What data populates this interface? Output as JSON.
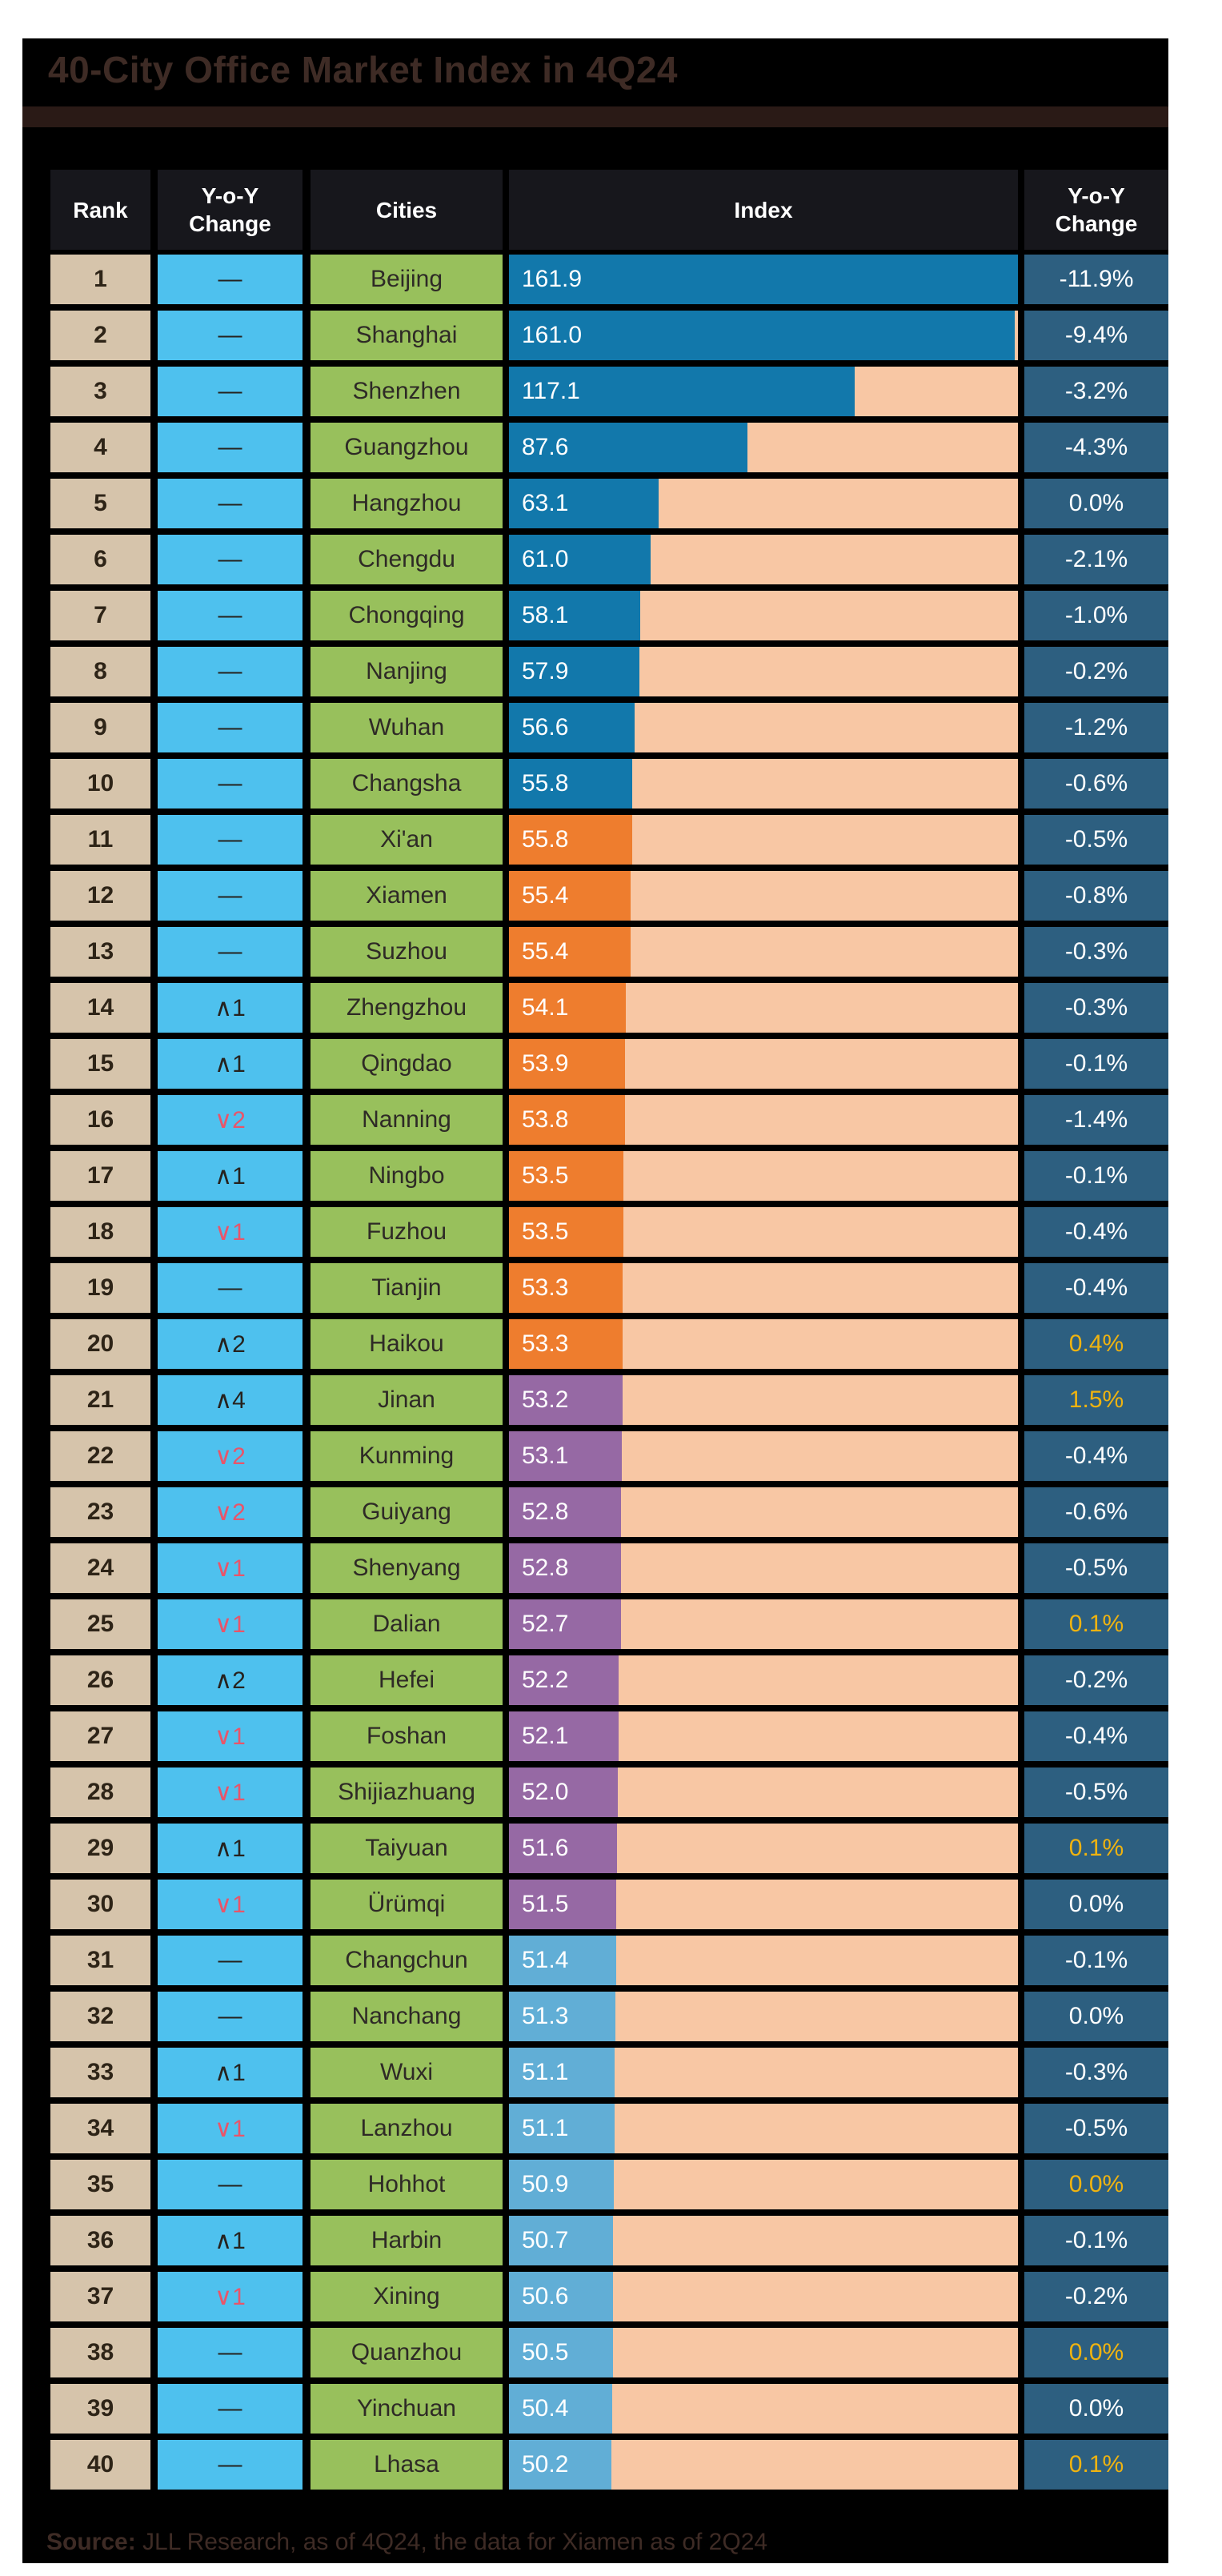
{
  "title": "40-City Office Market Index in 4Q24",
  "header": {
    "rank": "Rank",
    "change": "Y-o-Y Change",
    "cities": "Cities",
    "index": "Index",
    "yoy": "Y-o-Y Change"
  },
  "source": {
    "label": "Source:",
    "text": "JLL Research, as of 4Q24, the data for Xiamen as of 2Q24"
  },
  "colors": {
    "page_background": "#ffffff",
    "card_background": "#000000",
    "title_text": "#3e2b25",
    "divider_bar": "#2a1a16",
    "header_cell": "#17171c",
    "rank_cell": "#d6c4ab",
    "move_cell": "#4ec1ee",
    "city_cell": "#98c05c",
    "bar_track": "#f8c7a4",
    "yoy_cell": "#2d5f80",
    "yoy_accent_text": "#efb310",
    "move_down_text": "#e8556a",
    "tiers": [
      "#1278ab",
      "#ee7d2e",
      "#9669a4",
      "#61aed6"
    ]
  },
  "chart_data": {
    "type": "bar",
    "orientation": "horizontal",
    "title": "40-City Office Market Index in 4Q24",
    "xlabel": "Index",
    "ylabel": "Cities",
    "bar_scale": {
      "min": 22,
      "max": 161.9
    },
    "legend": "none",
    "grid": false,
    "categories": [
      "Beijing",
      "Shanghai",
      "Shenzhen",
      "Guangzhou",
      "Hangzhou",
      "Chengdu",
      "Chongqing",
      "Nanjing",
      "Wuhan",
      "Changsha",
      "Xi'an",
      "Xiamen",
      "Suzhou",
      "Zhengzhou",
      "Qingdao",
      "Nanning",
      "Ningbo",
      "Fuzhou",
      "Tianjin",
      "Haikou",
      "Jinan",
      "Kunming",
      "Guiyang",
      "Shenyang",
      "Dalian",
      "Hefei",
      "Foshan",
      "Shijiazhuang",
      "Taiyuan",
      "Ürümqi",
      "Changchun",
      "Nanchang",
      "Wuxi",
      "Lanzhou",
      "Hohhot",
      "Harbin",
      "Xining",
      "Quanzhou",
      "Yinchuan",
      "Lhasa"
    ],
    "values": [
      161.9,
      161.0,
      117.1,
      87.6,
      63.1,
      61.0,
      58.1,
      57.9,
      56.6,
      55.8,
      55.8,
      55.4,
      55.4,
      54.1,
      53.9,
      53.8,
      53.5,
      53.5,
      53.3,
      53.3,
      53.2,
      53.1,
      52.8,
      52.8,
      52.7,
      52.2,
      52.1,
      52.0,
      51.6,
      51.5,
      51.4,
      51.3,
      51.1,
      51.1,
      50.9,
      50.7,
      50.6,
      50.5,
      50.4,
      50.2
    ],
    "rows": [
      {
        "rank": "1",
        "move": {
          "label": "—",
          "dir": "none"
        },
        "city": "Beijing",
        "index": 161.9,
        "index_label": "161.9",
        "yoy": "-11.9%",
        "accent": false
      },
      {
        "rank": "2",
        "move": {
          "label": "—",
          "dir": "none"
        },
        "city": "Shanghai",
        "index": 161.0,
        "index_label": "161.0",
        "yoy": "-9.4%",
        "accent": false
      },
      {
        "rank": "3",
        "move": {
          "label": "—",
          "dir": "none"
        },
        "city": "Shenzhen",
        "index": 117.1,
        "index_label": "117.1",
        "yoy": "-3.2%",
        "accent": false
      },
      {
        "rank": "4",
        "move": {
          "label": "—",
          "dir": "none"
        },
        "city": "Guangzhou",
        "index": 87.6,
        "index_label": "87.6",
        "yoy": "-4.3%",
        "accent": false
      },
      {
        "rank": "5",
        "move": {
          "label": "—",
          "dir": "none"
        },
        "city": "Hangzhou",
        "index": 63.1,
        "index_label": "63.1",
        "yoy": "0.0%",
        "accent": false
      },
      {
        "rank": "6",
        "move": {
          "label": "—",
          "dir": "none"
        },
        "city": "Chengdu",
        "index": 61.0,
        "index_label": "61.0",
        "yoy": "-2.1%",
        "accent": false
      },
      {
        "rank": "7",
        "move": {
          "label": "—",
          "dir": "none"
        },
        "city": "Chongqing",
        "index": 58.1,
        "index_label": "58.1",
        "yoy": "-1.0%",
        "accent": false
      },
      {
        "rank": "8",
        "move": {
          "label": "—",
          "dir": "none"
        },
        "city": "Nanjing",
        "index": 57.9,
        "index_label": "57.9",
        "yoy": "-0.2%",
        "accent": false
      },
      {
        "rank": "9",
        "move": {
          "label": "—",
          "dir": "none"
        },
        "city": "Wuhan",
        "index": 56.6,
        "index_label": "56.6",
        "yoy": "-1.2%",
        "accent": false
      },
      {
        "rank": "10",
        "move": {
          "label": "—",
          "dir": "none"
        },
        "city": "Changsha",
        "index": 55.8,
        "index_label": "55.8",
        "yoy": "-0.6%",
        "accent": false
      },
      {
        "rank": "11",
        "move": {
          "label": "—",
          "dir": "none"
        },
        "city": "Xi'an",
        "index": 55.8,
        "index_label": "55.8",
        "yoy": "-0.5%",
        "accent": false
      },
      {
        "rank": "12",
        "move": {
          "label": "—",
          "dir": "none"
        },
        "city": "Xiamen",
        "index": 55.4,
        "index_label": "55.4",
        "yoy": "-0.8%",
        "accent": false
      },
      {
        "rank": "13",
        "move": {
          "label": "—",
          "dir": "none"
        },
        "city": "Suzhou",
        "index": 55.4,
        "index_label": "55.4",
        "yoy": "-0.3%",
        "accent": false
      },
      {
        "rank": "14",
        "move": {
          "label": "∧1",
          "dir": "up"
        },
        "city": "Zhengzhou",
        "index": 54.1,
        "index_label": "54.1",
        "yoy": "-0.3%",
        "accent": false
      },
      {
        "rank": "15",
        "move": {
          "label": "∧1",
          "dir": "up"
        },
        "city": "Qingdao",
        "index": 53.9,
        "index_label": "53.9",
        "yoy": "-0.1%",
        "accent": false
      },
      {
        "rank": "16",
        "move": {
          "label": "∨2",
          "dir": "down"
        },
        "city": "Nanning",
        "index": 53.8,
        "index_label": "53.8",
        "yoy": "-1.4%",
        "accent": false
      },
      {
        "rank": "17",
        "move": {
          "label": "∧1",
          "dir": "up"
        },
        "city": "Ningbo",
        "index": 53.5,
        "index_label": "53.5",
        "yoy": "-0.1%",
        "accent": false
      },
      {
        "rank": "18",
        "move": {
          "label": "∨1",
          "dir": "down"
        },
        "city": "Fuzhou",
        "index": 53.5,
        "index_label": "53.5",
        "yoy": "-0.4%",
        "accent": false
      },
      {
        "rank": "19",
        "move": {
          "label": "—",
          "dir": "none"
        },
        "city": "Tianjin",
        "index": 53.3,
        "index_label": "53.3",
        "yoy": "-0.4%",
        "accent": false
      },
      {
        "rank": "20",
        "move": {
          "label": "∧2",
          "dir": "up"
        },
        "city": "Haikou",
        "index": 53.3,
        "index_label": "53.3",
        "yoy": "0.4%",
        "accent": true
      },
      {
        "rank": "21",
        "move": {
          "label": "∧4",
          "dir": "up"
        },
        "city": "Jinan",
        "index": 53.2,
        "index_label": "53.2",
        "yoy": "1.5%",
        "accent": true
      },
      {
        "rank": "22",
        "move": {
          "label": "∨2",
          "dir": "down"
        },
        "city": "Kunming",
        "index": 53.1,
        "index_label": "53.1",
        "yoy": "-0.4%",
        "accent": false
      },
      {
        "rank": "23",
        "move": {
          "label": "∨2",
          "dir": "down"
        },
        "city": "Guiyang",
        "index": 52.8,
        "index_label": "52.8",
        "yoy": "-0.6%",
        "accent": false
      },
      {
        "rank": "24",
        "move": {
          "label": "∨1",
          "dir": "down"
        },
        "city": "Shenyang",
        "index": 52.8,
        "index_label": "52.8",
        "yoy": "-0.5%",
        "accent": false
      },
      {
        "rank": "25",
        "move": {
          "label": "∨1",
          "dir": "down"
        },
        "city": "Dalian",
        "index": 52.7,
        "index_label": "52.7",
        "yoy": "0.1%",
        "accent": true
      },
      {
        "rank": "26",
        "move": {
          "label": "∧2",
          "dir": "up"
        },
        "city": "Hefei",
        "index": 52.2,
        "index_label": "52.2",
        "yoy": "-0.2%",
        "accent": false
      },
      {
        "rank": "27",
        "move": {
          "label": "∨1",
          "dir": "down"
        },
        "city": "Foshan",
        "index": 52.1,
        "index_label": "52.1",
        "yoy": "-0.4%",
        "accent": false
      },
      {
        "rank": "28",
        "move": {
          "label": "∨1",
          "dir": "down"
        },
        "city": "Shijiazhuang",
        "index": 52.0,
        "index_label": "52.0",
        "yoy": "-0.5%",
        "accent": false
      },
      {
        "rank": "29",
        "move": {
          "label": "∧1",
          "dir": "up"
        },
        "city": "Taiyuan",
        "index": 51.6,
        "index_label": "51.6",
        "yoy": "0.1%",
        "accent": true
      },
      {
        "rank": "30",
        "move": {
          "label": "∨1",
          "dir": "down"
        },
        "city": "Ürümqi",
        "index": 51.5,
        "index_label": "51.5",
        "yoy": "0.0%",
        "accent": false
      },
      {
        "rank": "31",
        "move": {
          "label": "—",
          "dir": "none"
        },
        "city": "Changchun",
        "index": 51.4,
        "index_label": "51.4",
        "yoy": "-0.1%",
        "accent": false
      },
      {
        "rank": "32",
        "move": {
          "label": "—",
          "dir": "none"
        },
        "city": "Nanchang",
        "index": 51.3,
        "index_label": "51.3",
        "yoy": "0.0%",
        "accent": false
      },
      {
        "rank": "33",
        "move": {
          "label": "∧1",
          "dir": "up"
        },
        "city": "Wuxi",
        "index": 51.1,
        "index_label": "51.1",
        "yoy": "-0.3%",
        "accent": false
      },
      {
        "rank": "34",
        "move": {
          "label": "∨1",
          "dir": "down"
        },
        "city": "Lanzhou",
        "index": 51.1,
        "index_label": "51.1",
        "yoy": "-0.5%",
        "accent": false
      },
      {
        "rank": "35",
        "move": {
          "label": "—",
          "dir": "none"
        },
        "city": "Hohhot",
        "index": 50.9,
        "index_label": "50.9",
        "yoy": "0.0%",
        "accent": true
      },
      {
        "rank": "36",
        "move": {
          "label": "∧1",
          "dir": "up"
        },
        "city": "Harbin",
        "index": 50.7,
        "index_label": "50.7",
        "yoy": "-0.1%",
        "accent": false
      },
      {
        "rank": "37",
        "move": {
          "label": "∨1",
          "dir": "down"
        },
        "city": "Xining",
        "index": 50.6,
        "index_label": "50.6",
        "yoy": "-0.2%",
        "accent": false
      },
      {
        "rank": "38",
        "move": {
          "label": "—",
          "dir": "none"
        },
        "city": "Quanzhou",
        "index": 50.5,
        "index_label": "50.5",
        "yoy": "0.0%",
        "accent": true
      },
      {
        "rank": "39",
        "move": {
          "label": "—",
          "dir": "none"
        },
        "city": "Yinchuan",
        "index": 50.4,
        "index_label": "50.4",
        "yoy": "0.0%",
        "accent": false
      },
      {
        "rank": "40",
        "move": {
          "label": "—",
          "dir": "none"
        },
        "city": "Lhasa",
        "index": 50.2,
        "index_label": "50.2",
        "yoy": "0.1%",
        "accent": true
      }
    ]
  }
}
